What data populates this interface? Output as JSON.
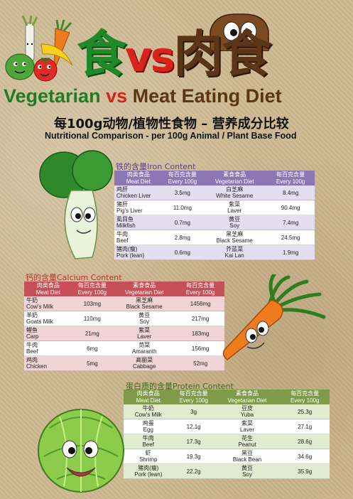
{
  "title": {
    "cn_part1": "食",
    "vs": "vs",
    "cn_part2": "肉食",
    "en_part1": "Vegetarian",
    "en_vs": " vs ",
    "en_part2": "Meat Eating Diet"
  },
  "subtitle": {
    "cn": "每100g动物/植物性食物 – 营养成分比较",
    "en": "Nutritional Comparison - per 100g Animal / Plant Base Food"
  },
  "headers": {
    "meat_cn": "肉类食品",
    "meat_en": "Meat Diet",
    "per_cn": "每百克含量",
    "per_en": "Every 100g",
    "veg_cn": "素食食品",
    "veg_en": "Vegetarian Diet"
  },
  "iron": {
    "title_cn": "铁的含量",
    "title_en": "Iron Content",
    "rows": [
      {
        "meat_cn": "鸡肝",
        "meat_en": "Chicken Liver",
        "meat_val": "3.5mg",
        "veg_cn": "白芝麻",
        "veg_en": "White Sesame",
        "veg_val": "8.4mg"
      },
      {
        "meat_cn": "猪肝",
        "meat_en": "Pig's Liver",
        "meat_val": "11.0mg",
        "veg_cn": "紫菜",
        "veg_en": "Laver",
        "veg_val": "90.4mg"
      },
      {
        "meat_cn": "虱目鱼",
        "meat_en": "Milkfish",
        "meat_val": "0.7mg",
        "veg_cn": "黄豆",
        "veg_en": "Soy",
        "veg_val": "7.4mg"
      },
      {
        "meat_cn": "牛肉",
        "meat_en": "Beef",
        "meat_val": "2.8mg",
        "veg_cn": "黑芝麻",
        "veg_en": "Black Sesame",
        "veg_val": "24.5mg"
      },
      {
        "meat_cn": "猪肉(瘦)",
        "meat_en": "Pork (lean)",
        "meat_val": "0.6mg",
        "veg_cn": "芥蓝菜",
        "veg_en": "Kai Lan",
        "veg_val": "1.9mg"
      }
    ]
  },
  "calcium": {
    "title_cn": "钙的含量",
    "title_en": "Calcium Content",
    "rows": [
      {
        "meat_cn": "牛奶",
        "meat_en": "Cow's Milk",
        "meat_val": "103mg",
        "veg_cn": "黑芝麻",
        "veg_en": "Black Sesame",
        "veg_val": "1456mg"
      },
      {
        "meat_cn": "羊奶",
        "meat_en": "Goats Milk",
        "meat_val": "110mg",
        "veg_cn": "黄豆",
        "veg_en": "Soy",
        "veg_val": "217mg"
      },
      {
        "meat_cn": "鲤鱼",
        "meat_en": "Carp",
        "meat_val": "21mg",
        "veg_cn": "紫菜",
        "veg_en": "Laver",
        "veg_val": "183mg"
      },
      {
        "meat_cn": "牛肉",
        "meat_en": "Beef",
        "meat_val": "6mg",
        "veg_cn": "苋菜",
        "veg_en": "Amaranth",
        "veg_val": "156mg"
      },
      {
        "meat_cn": "鸡肉",
        "meat_en": "Chicken",
        "meat_val": "5mg",
        "veg_cn": "高丽菜",
        "veg_en": "Cabbage",
        "veg_val": "52mg"
      }
    ]
  },
  "protein": {
    "title_cn": "蛋白质的含量",
    "title_en": "Protein Content",
    "rows": [
      {
        "meat_cn": "牛奶",
        "meat_en": "Cow's Milk",
        "meat_val": "3g",
        "veg_cn": "豆皮",
        "veg_en": "Yuba",
        "veg_val": "25.3g"
      },
      {
        "meat_cn": "鸡蛋",
        "meat_en": "Egg",
        "meat_val": "12.1g",
        "veg_cn": "紫菜",
        "veg_en": "Laver",
        "veg_val": "27.1g"
      },
      {
        "meat_cn": "牛肉",
        "meat_en": "Beef",
        "meat_val": "17.3g",
        "veg_cn": "花生",
        "veg_en": "Peanut",
        "veg_val": "28.6g"
      },
      {
        "meat_cn": "虾",
        "meat_en": "Shrimp",
        "meat_val": "19.3g",
        "veg_cn": "黑豆",
        "veg_en": "Black Bean",
        "veg_val": "34.6g"
      },
      {
        "meat_cn": "猪肉(瘦)",
        "meat_en": "Pork (lean)",
        "meat_val": "22.2g",
        "veg_cn": "黄豆",
        "veg_en": "Soy",
        "veg_val": "35.9g"
      }
    ]
  },
  "colors": {
    "green": "#1f8a2a",
    "red": "#d8231c",
    "brown": "#5a3516",
    "iron_header": "#8d76b4",
    "calcium_header": "#c75058",
    "protein_header": "#7f9b4a"
  },
  "icons": [
    "fruit-veg-mascot-icon",
    "brown-mascot-icon",
    "bok-choy-mascot-icon",
    "carrot-mascot-icon",
    "cabbage-mascot-icon"
  ]
}
